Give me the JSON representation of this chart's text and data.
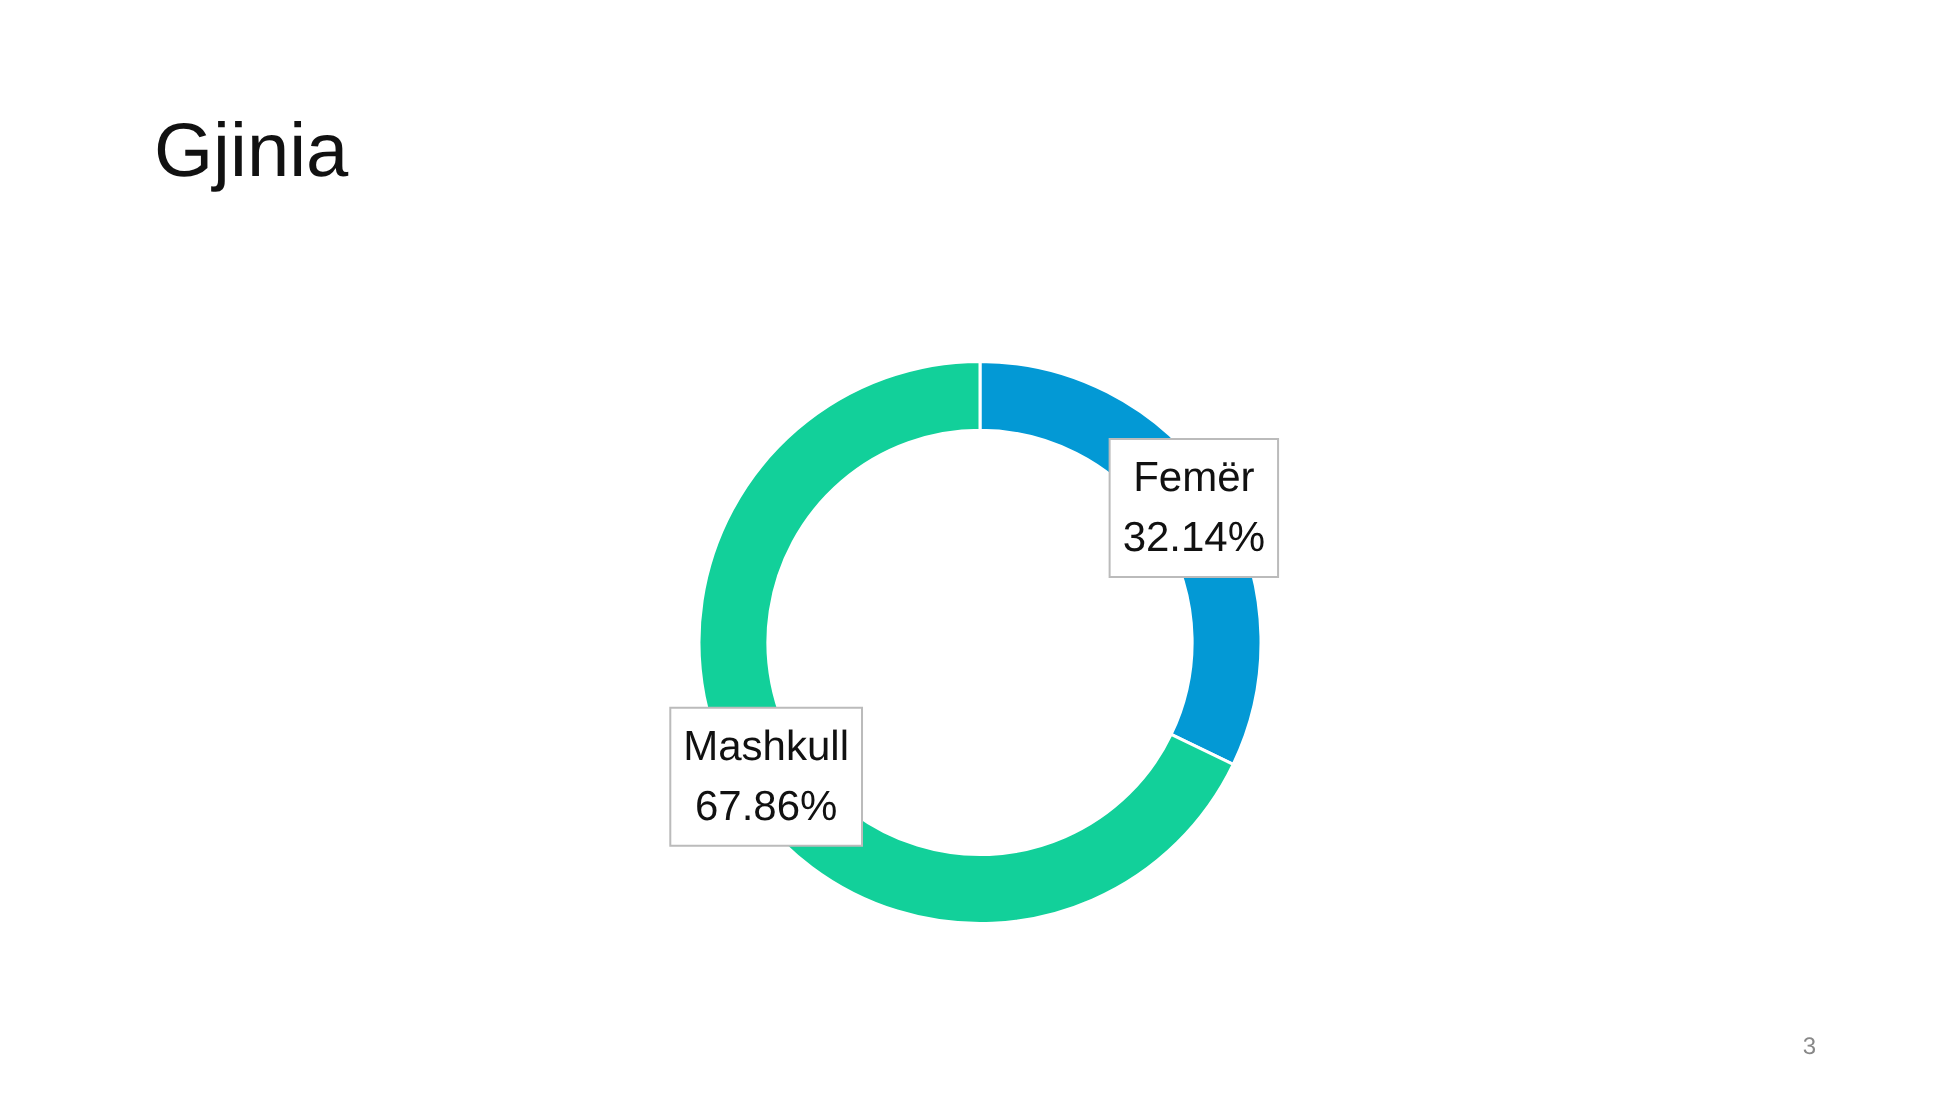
{
  "chart_data": {
    "type": "donut",
    "title": "Gjinia",
    "categories": [
      "Femër",
      "Mashkull"
    ],
    "values": [
      32.14,
      67.86
    ],
    "value_labels": [
      "32.14%",
      "67.86%"
    ],
    "colors": [
      "#0399d5",
      "#12d09a"
    ],
    "legend": false,
    "annotations": [
      "3"
    ]
  }
}
